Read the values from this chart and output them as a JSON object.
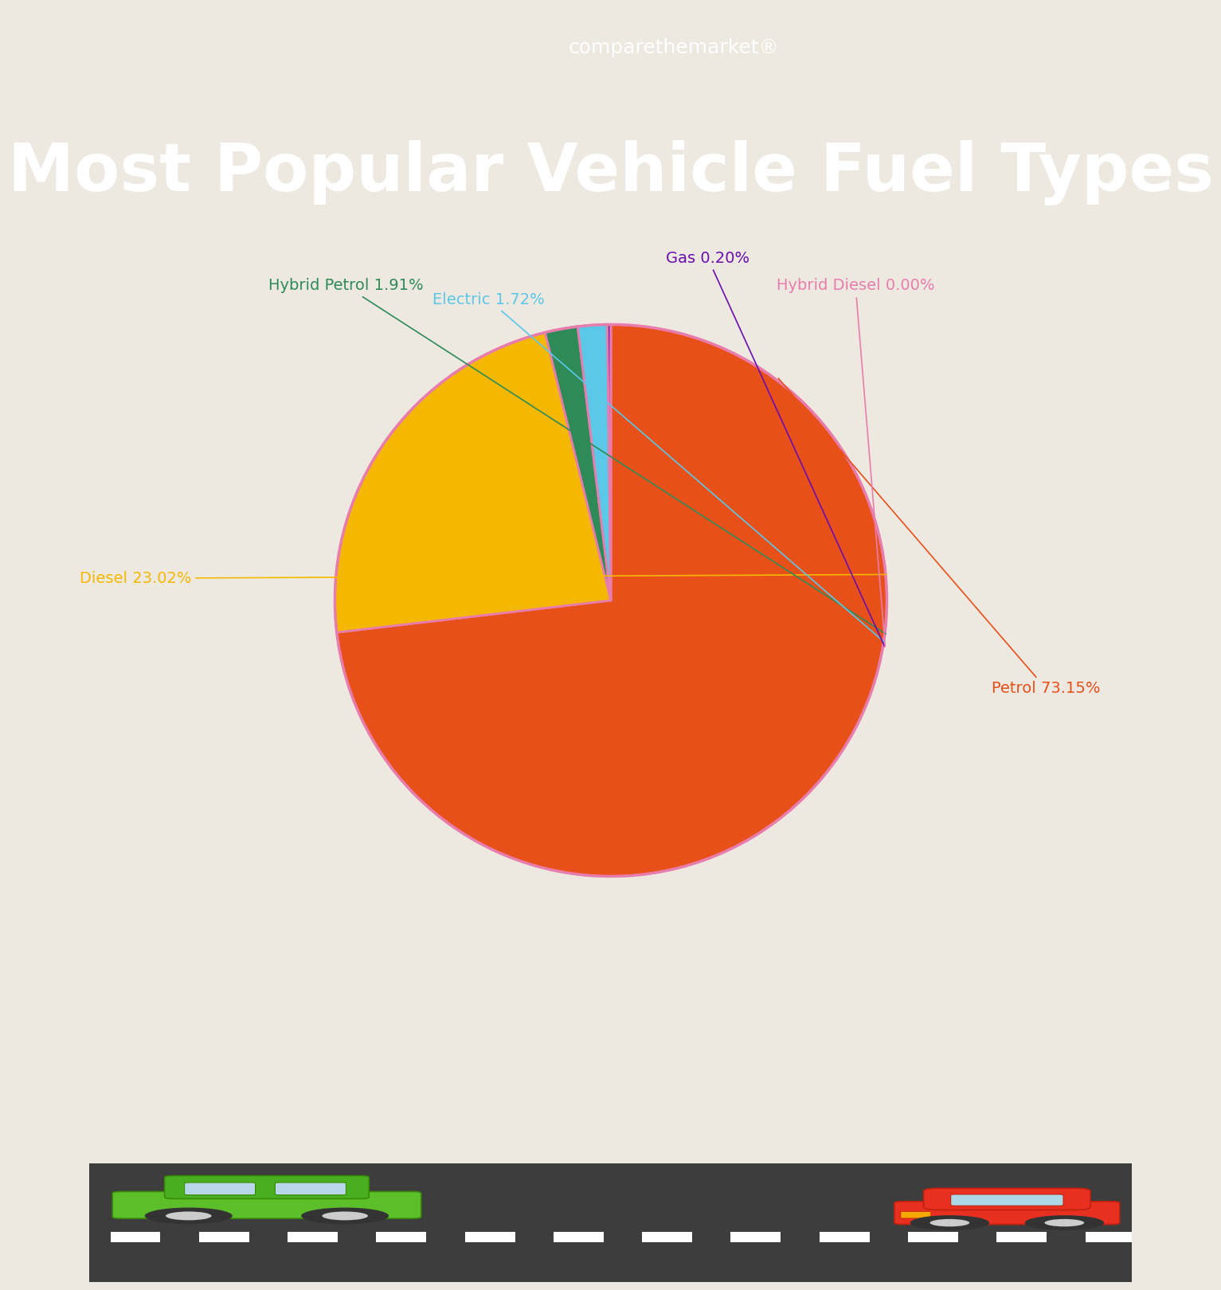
{
  "title": "Most Popular Vehicle Fuel Types",
  "header_bg_color": "#E05C5C",
  "body_bg_color": "#EDE8E0",
  "road_color": "#3D3D3D",
  "pie_labels": [
    "Petrol",
    "Diesel",
    "Hybrid Petrol",
    "Electric",
    "Gas",
    "Hybrid Diesel"
  ],
  "pie_values": [
    73.15,
    23.02,
    1.91,
    1.72,
    0.2,
    0.0
  ],
  "pie_colors": [
    "#E8501A",
    "#F5B800",
    "#2E8B57",
    "#5BC8E8",
    "#6A0DAD",
    "#E87DAD"
  ],
  "pie_border_color": "#E87DAD",
  "label_colors": [
    "#E8501A",
    "#F5B800",
    "#2E8B57",
    "#5BC8E8",
    "#6A0DAD",
    "#E87DAD"
  ],
  "label_texts": [
    "Petrol 73.15%",
    "Diesel 23.02%",
    "Hybrid Petrol 1.91%",
    "Electric 1.72%",
    "Gas 0.20%",
    "Hybrid Diesel 0.00%"
  ],
  "startangle": 90,
  "brand_text": "comparethemarket®"
}
